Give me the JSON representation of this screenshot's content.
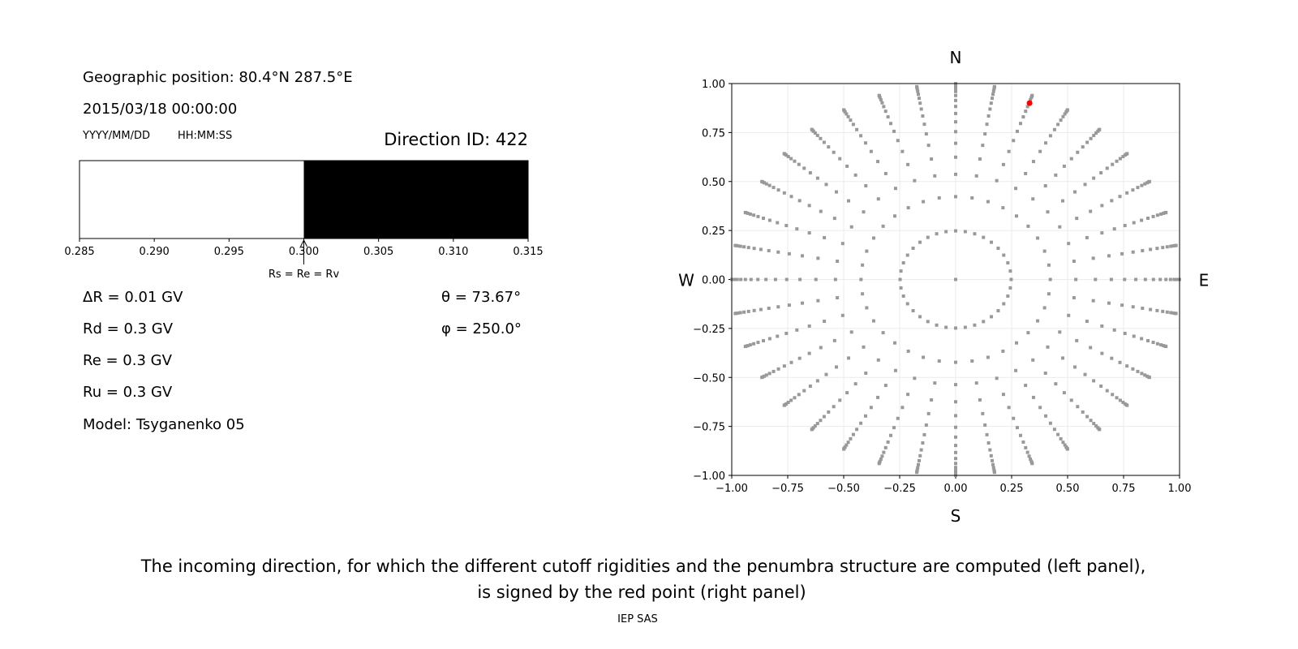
{
  "info": {
    "geo_position": "Geographic position: 80.4°N 287.5°E",
    "datetime": "2015/03/18 00:00:00",
    "date_format": "YYYY/MM/DD",
    "time_format": "HH:MM:SS",
    "direction_id": "Direction ID: 422",
    "delta_r": "ΔR = 0.01 GV",
    "rd": "Rd = 0.3 GV",
    "re": "Re = 0.3 GV",
    "ru": "Ru = 0.3 GV",
    "model": "Model: Tsyganenko 05",
    "theta": "θ = 73.67°",
    "phi": "φ = 250.0°"
  },
  "caption": {
    "line1": "The incoming direction, for which the different cutoff rigidities and the penumbra structure are computed (left panel),",
    "line2": "is signed by the red point (right panel)",
    "credit": "IEP SAS"
  },
  "chart_data": [
    {
      "type": "bar",
      "xlim": [
        0.285,
        0.315
      ],
      "xticks": [
        "0.285",
        "0.290",
        "0.295",
        "0.300",
        "0.305",
        "0.310",
        "0.315"
      ],
      "segments": [
        {
          "from": 0.285,
          "to": 0.3,
          "color": "#ffffff"
        },
        {
          "from": 0.3,
          "to": 0.315,
          "color": "#000000"
        }
      ],
      "annotation": {
        "text": "Rs = Re = Rv",
        "x": 0.3
      }
    },
    {
      "type": "scatter",
      "xlim": [
        -1,
        1
      ],
      "ylim": [
        -1,
        1
      ],
      "xticks": [
        "−1.00",
        "−0.75",
        "−0.50",
        "−0.25",
        "0.00",
        "0.25",
        "0.50",
        "0.75",
        "1.00"
      ],
      "yticks": [
        "−1.00",
        "−0.75",
        "−0.50",
        "−0.25",
        "0.00",
        "0.25",
        "0.50",
        "0.75",
        "1.00"
      ],
      "grid": true,
      "compass": {
        "north": "N",
        "south": "S",
        "west": "W",
        "east": "E"
      },
      "directions": {
        "rings": 16,
        "cos_zenith_step": 0.0625,
        "azimuth_step_deg": 10,
        "center_point": true,
        "color": "#999999"
      },
      "selected": {
        "theta_deg": 73.67,
        "phi_deg": 250.0,
        "x": 0.33,
        "y": 0.9,
        "color": "#ff0000"
      }
    }
  ]
}
